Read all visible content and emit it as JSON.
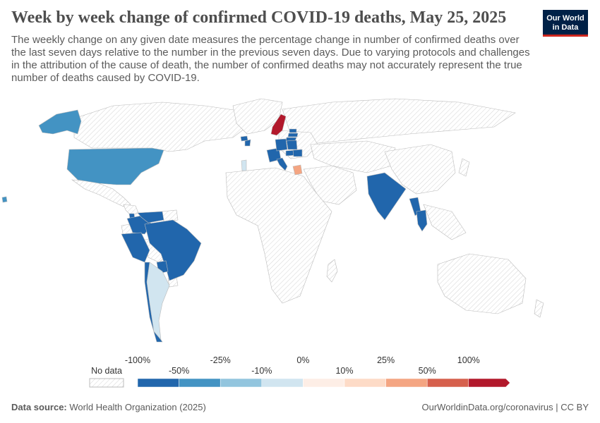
{
  "header": {
    "title": "Week by week change of confirmed COVID-19 deaths, May 25, 2025",
    "subtitle": "The weekly change on any given date measures the percentage change in number of confirmed deaths over the last seven days relative to the number in the previous seven days. Due to varying protocols and challenges in the attribution of the cause of death, the number of confirmed deaths may not accurately represent the true number of deaths caused by COVID-19."
  },
  "logo": {
    "line1": "Our World",
    "line2": "in Data"
  },
  "footer": {
    "source_label": "Data source:",
    "source_value": "World Health Organization (2025)",
    "url": "OurWorldinData.org/coronavirus | CC BY"
  },
  "colors": {
    "no_data_stroke": "#cfcfcf",
    "bins": [
      "#2166ac",
      "#4393c3",
      "#92c5de",
      "#d1e5f0",
      "#fddbc7",
      "#f4a582",
      "#d6604d",
      "#b2182b"
    ],
    "bin_fill_light": [
      "#fdeee6"
    ]
  },
  "chart_data": {
    "type": "choropleth",
    "title": "Week by week change of confirmed COVID-19 deaths, May 25, 2025",
    "date": "May 25, 2025",
    "legend": {
      "no_data_label": "No data",
      "bins": [
        {
          "from": -100,
          "to": -50,
          "color": "#2166ac"
        },
        {
          "from": -50,
          "to": -25,
          "color": "#4393c3"
        },
        {
          "from": -25,
          "to": -10,
          "color": "#92c5de"
        },
        {
          "from": -10,
          "to": 0,
          "color": "#d1e5f0"
        },
        {
          "from": 0,
          "to": 10,
          "color": "#fdeee6"
        },
        {
          "from": 10,
          "to": 25,
          "color": "#fddbc7"
        },
        {
          "from": 25,
          "to": 50,
          "color": "#f4a582"
        },
        {
          "from": 50,
          "to": 100,
          "color": "#d6604d"
        },
        {
          "from": 100,
          "to": null,
          "color": "#b2182b"
        }
      ],
      "top_labels": [
        "-100%",
        "-25%",
        "0%",
        "25%",
        "100%"
      ],
      "bottom_labels": [
        "-50%",
        "-10%",
        "10%",
        "50%"
      ]
    },
    "countries": [
      {
        "name": "United States",
        "bin": "-50% to -25%"
      },
      {
        "name": "Alaska (United States)",
        "bin": "-50% to -25%"
      },
      {
        "name": "Hawaii (United States)",
        "bin": "-50% to -25%"
      },
      {
        "name": "Brazil",
        "bin": "-100% to -50%"
      },
      {
        "name": "Peru",
        "bin": "-100% to -50%"
      },
      {
        "name": "Colombia",
        "bin": "-100% to -50%"
      },
      {
        "name": "Venezuela",
        "bin": "-100% to -50%"
      },
      {
        "name": "Paraguay",
        "bin": "-100% to -50%"
      },
      {
        "name": "Costa Rica",
        "bin": "-100% to -50%"
      },
      {
        "name": "Argentina",
        "bin": "-10% to 0%"
      },
      {
        "name": "Chile",
        "bin": "-100% to -50%"
      },
      {
        "name": "India",
        "bin": "-100% to -50%"
      },
      {
        "name": "Thailand",
        "bin": "-100% to -50%"
      },
      {
        "name": "Myanmar",
        "bin": "-100% to -50%"
      },
      {
        "name": "Sweden",
        "bin": "> 100%"
      },
      {
        "name": "Ireland",
        "bin": "-100% to -50%"
      },
      {
        "name": "Germany",
        "bin": "-100% to -50%"
      },
      {
        "name": "Poland",
        "bin": "-100% to -50%"
      },
      {
        "name": "Lithuania",
        "bin": "-100% to -50%"
      },
      {
        "name": "Latvia",
        "bin": "-100% to -50%"
      },
      {
        "name": "Estonia",
        "bin": "-100% to -50%"
      },
      {
        "name": "France",
        "bin": "-100% to -50%"
      },
      {
        "name": "Italy",
        "bin": "-100% to -50%"
      },
      {
        "name": "Hungary",
        "bin": "-100% to -50%"
      },
      {
        "name": "Romania",
        "bin": "-100% to -50%"
      },
      {
        "name": "Greece",
        "bin": "25% to 50%"
      },
      {
        "name": "Portugal",
        "bin": "-10% to 0%"
      },
      {
        "name": "Iceland",
        "bin": "-100% to -50%"
      }
    ]
  }
}
